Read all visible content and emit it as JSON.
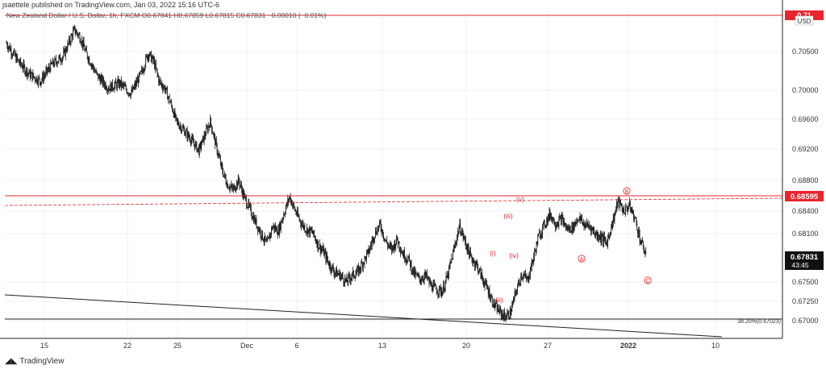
{
  "header": {
    "published": "jsaettele published on TradingView.com, Jan 03, 2022 15:16 UTC-6",
    "symbol_line": "New Zealand Dollar / U.S. Dollar, 1h, FXCM  O0.67841  H0.67859  L0.67815  C0.67831  −0.00010 (−0.01%)"
  },
  "footer": {
    "brand": "TradingView",
    "logo_icon": "tradingview-logo-icon"
  },
  "colors": {
    "candle": "#1a1a1a",
    "red": "#e8242d",
    "grid": "#f1f1f1",
    "axis": "#222222",
    "label_bg": "#111111"
  },
  "chart_data": {
    "type": "candlestick",
    "currency": "USD",
    "y_ticks": [
      "0.70500",
      "0.70000",
      "0.69600",
      "0.69200",
      "0.68800",
      "0.68400",
      "0.68100",
      "0.67500",
      "0.67250",
      "0.67000"
    ],
    "x_ticks": [
      "15",
      "22",
      "25",
      "Dec",
      "6",
      "13",
      "20",
      "27",
      "2022",
      "10"
    ],
    "last_price": "0.67831",
    "countdown": "43:45",
    "resistance_label": "0.68595",
    "top_label": "0.71",
    "fib_label": "38.20%(0.67023)",
    "wave_labels": [
      "(i)",
      "(ii)",
      "(iii)",
      "(iv)",
      "(v)",
      "A",
      "B",
      "C"
    ],
    "price_path": [
      [
        0,
        0.7061
      ],
      [
        2,
        0.7038
      ],
      [
        4,
        0.7021
      ],
      [
        6,
        0.7012
      ],
      [
        8,
        0.7033
      ],
      [
        10,
        0.7044
      ],
      [
        11,
        0.7061
      ],
      [
        12,
        0.7078
      ],
      [
        13,
        0.7069
      ],
      [
        14,
        0.7049
      ],
      [
        16,
        0.7019
      ],
      [
        18,
        0.7003
      ],
      [
        20,
        0.7009
      ],
      [
        22,
        0.6995
      ],
      [
        24,
        0.7025
      ],
      [
        25,
        0.7048
      ],
      [
        26,
        0.7037
      ],
      [
        27,
        0.7011
      ],
      [
        28,
        0.7002
      ],
      [
        29,
        0.6982
      ],
      [
        30,
        0.6957
      ],
      [
        32,
        0.6939
      ],
      [
        34,
        0.6918
      ],
      [
        35,
        0.6938
      ],
      [
        36,
        0.6957
      ],
      [
        37,
        0.6925
      ],
      [
        38,
        0.6895
      ],
      [
        39,
        0.6875
      ],
      [
        40,
        0.6868
      ],
      [
        41,
        0.688
      ],
      [
        42,
        0.6858
      ],
      [
        43,
        0.6842
      ],
      [
        44,
        0.6825
      ],
      [
        45,
        0.681
      ],
      [
        46,
        0.6796
      ],
      [
        47,
        0.682
      ],
      [
        48,
        0.6813
      ],
      [
        49,
        0.6837
      ],
      [
        50,
        0.6859
      ],
      [
        51,
        0.684
      ],
      [
        52,
        0.6825
      ],
      [
        53,
        0.6815
      ],
      [
        54,
        0.6812
      ],
      [
        55,
        0.6797
      ],
      [
        56,
        0.6787
      ],
      [
        57,
        0.6772
      ],
      [
        58,
        0.6762
      ],
      [
        59,
        0.6758
      ],
      [
        60,
        0.675
      ],
      [
        61,
        0.6758
      ],
      [
        62,
        0.6762
      ],
      [
        64,
        0.6788
      ],
      [
        65,
        0.681
      ],
      [
        66,
        0.6822
      ],
      [
        67,
        0.68
      ],
      [
        68,
        0.679
      ],
      [
        69,
        0.6803
      ],
      [
        70,
        0.6785
      ],
      [
        71,
        0.6778
      ],
      [
        72,
        0.676
      ],
      [
        73,
        0.6753
      ],
      [
        74,
        0.6758
      ],
      [
        75,
        0.6745
      ],
      [
        76,
        0.674
      ],
      [
        77,
        0.6738
      ],
      [
        78,
        0.676
      ],
      [
        79,
        0.679
      ],
      [
        80,
        0.682
      ],
      [
        81,
        0.68
      ],
      [
        82,
        0.678
      ],
      [
        83,
        0.6772
      ],
      [
        84,
        0.6755
      ],
      [
        85,
        0.674
      ],
      [
        86,
        0.6722
      ],
      [
        87,
        0.6712
      ],
      [
        88,
        0.6705
      ],
      [
        89,
        0.671
      ],
      [
        90,
        0.6738
      ],
      [
        91,
        0.676
      ],
      [
        92,
        0.6752
      ],
      [
        93,
        0.6778
      ],
      [
        94,
        0.6807
      ],
      [
        95,
        0.6822
      ],
      [
        96,
        0.6836
      ],
      [
        97,
        0.6823
      ],
      [
        98,
        0.683
      ],
      [
        99,
        0.6816
      ],
      [
        100,
        0.6818
      ],
      [
        101,
        0.6832
      ],
      [
        102,
        0.6822
      ],
      [
        103,
        0.682
      ],
      [
        104,
        0.681
      ],
      [
        105,
        0.6806
      ],
      [
        106,
        0.6798
      ],
      [
        107,
        0.6824
      ],
      [
        108,
        0.6853
      ],
      [
        109,
        0.684
      ],
      [
        110,
        0.6847
      ],
      [
        111,
        0.683
      ],
      [
        112,
        0.68
      ],
      [
        113,
        0.6783
      ]
    ]
  }
}
